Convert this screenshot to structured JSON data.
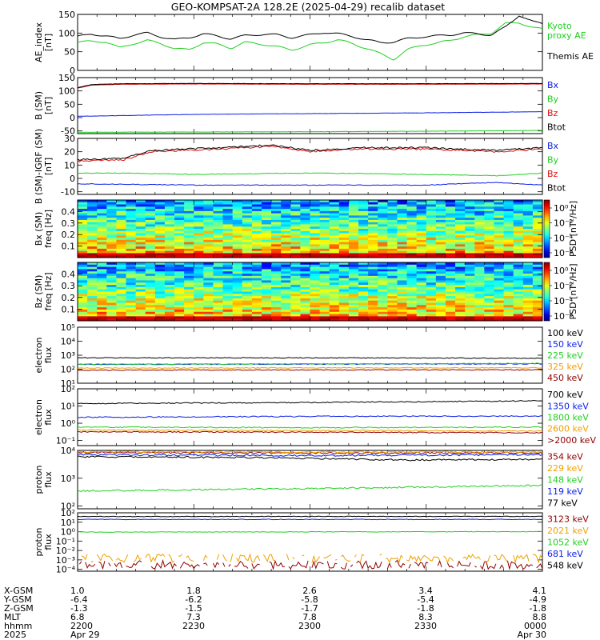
{
  "title": "GEO-KOMPSAT-2A 128.2E (2025-04-29) recalib dataset",
  "colors": {
    "black": "#000000",
    "blue": "#0a1ee6",
    "green": "#20d020",
    "orange": "#f0a000",
    "darkred": "#900000",
    "red": "#e01010"
  },
  "time": {
    "start": "22:00",
    "end": "00:00"
  },
  "chart_data": [
    {
      "type": "line",
      "ylabel": "AE_index\n[nT]",
      "ylim": [
        0,
        150
      ],
      "yticks": [
        0,
        50,
        100,
        150
      ],
      "series": [
        {
          "name": "Kyoto\nproxy AE",
          "color": "#20d020",
          "x": [
            0,
            0.03,
            0.06,
            0.09,
            0.12,
            0.15,
            0.18,
            0.21,
            0.24,
            0.27,
            0.3,
            0.33,
            0.36,
            0.4,
            0.43,
            0.46,
            0.5,
            0.53,
            0.56,
            0.59,
            0.62,
            0.65,
            0.68,
            0.71,
            0.74,
            0.77,
            0.8,
            0.83,
            0.86,
            0.89,
            0.92,
            0.95,
            0.98,
            1.0
          ],
          "y": [
            75,
            78,
            77,
            60,
            72,
            80,
            72,
            58,
            55,
            75,
            70,
            60,
            75,
            70,
            63,
            55,
            68,
            75,
            82,
            72,
            60,
            45,
            30,
            55,
            68,
            72,
            80,
            90,
            95,
            100,
            125,
            128,
            115,
            110
          ]
        },
        {
          "name": "Themis AE",
          "color": "#000000",
          "x": [
            0,
            0.03,
            0.06,
            0.09,
            0.12,
            0.15,
            0.18,
            0.21,
            0.24,
            0.27,
            0.3,
            0.33,
            0.36,
            0.4,
            0.43,
            0.46,
            0.5,
            0.53,
            0.56,
            0.59,
            0.62,
            0.65,
            0.68,
            0.71,
            0.74,
            0.77,
            0.8,
            0.83,
            0.86,
            0.89,
            0.92,
            0.95,
            0.98,
            1.0
          ],
          "y": [
            90,
            98,
            92,
            85,
            95,
            100,
            90,
            82,
            88,
            98,
            92,
            85,
            93,
            97,
            95,
            88,
            95,
            102,
            98,
            92,
            82,
            75,
            76,
            85,
            90,
            92,
            95,
            100,
            98,
            95,
            115,
            148,
            130,
            125
          ]
        }
      ]
    },
    {
      "type": "line",
      "ylabel": "B (SM)\n[nT]",
      "ylim": [
        -60,
        150
      ],
      "yticks": [
        -50,
        0,
        50,
        100,
        150
      ],
      "series": [
        {
          "name": "Bx",
          "color": "#0a1ee6",
          "x": [
            0,
            0.25,
            0.5,
            0.75,
            1.0
          ],
          "y": [
            5,
            12,
            15,
            18,
            22
          ]
        },
        {
          "name": "By",
          "color": "#20d020",
          "x": [
            0,
            0.25,
            0.5,
            0.75,
            1.0
          ],
          "y": [
            -55,
            -54,
            -53,
            -51,
            -48
          ]
        },
        {
          "name": "Bz",
          "color": "#e01010",
          "x": [
            0,
            0.03,
            0.1,
            0.25,
            0.5,
            0.75,
            1.0
          ],
          "y": [
            110,
            122,
            125,
            126,
            125,
            125,
            126
          ]
        },
        {
          "name": "Btot",
          "color": "#000000",
          "x": [
            0,
            0.03,
            0.1,
            0.25,
            0.5,
            0.75,
            1.0
          ],
          "y": [
            112,
            124,
            127,
            128,
            127,
            127,
            128
          ]
        }
      ]
    },
    {
      "type": "line",
      "ylabel": "B (SM)-IGRF (SM)\n[nT]",
      "ylim": [
        -12,
        30
      ],
      "yticks": [
        -10,
        0,
        10,
        20,
        30
      ],
      "series": [
        {
          "name": "Bx",
          "color": "#0a1ee6",
          "x": [
            0,
            0.25,
            0.5,
            0.75,
            0.9,
            1.0
          ],
          "y": [
            -4,
            -5,
            -5,
            -5,
            -3,
            -5
          ]
        },
        {
          "name": "By",
          "color": "#20d020",
          "x": [
            0,
            0.1,
            0.25,
            0.5,
            0.75,
            0.9,
            1.0
          ],
          "y": [
            4,
            4,
            3,
            4,
            3,
            2,
            4
          ]
        },
        {
          "name": "Bz",
          "color": "#e01010",
          "x": [
            0,
            0.1,
            0.16,
            0.3,
            0.42,
            0.5,
            0.6,
            0.75,
            0.9,
            1.0
          ],
          "y": [
            13,
            14,
            20,
            22,
            24,
            20,
            22,
            22,
            20,
            22
          ]
        },
        {
          "name": "Btot",
          "color": "#000000",
          "x": [
            0,
            0.1,
            0.16,
            0.3,
            0.42,
            0.5,
            0.6,
            0.75,
            0.9,
            1.0
          ],
          "y": [
            14,
            15,
            21,
            23,
            25,
            21,
            23,
            23,
            21,
            23
          ]
        }
      ]
    },
    {
      "type": "heatmap",
      "ylabel": "Bx (SM)\nfreq [Hz]",
      "ylim": [
        0,
        0.5
      ],
      "yticks": [
        0.1,
        0.2,
        0.3,
        0.4
      ],
      "colorbar": {
        "label": "PSD [nT²/Hz]",
        "ticks": [
          "10⁰",
          "10⁻²",
          "10⁻⁴",
          "10⁻⁶"
        ]
      },
      "seed": 7
    },
    {
      "type": "heatmap",
      "ylabel": "Bz (SM)\nfreq [Hz]",
      "ylim": [
        0,
        0.5
      ],
      "yticks": [
        0.1,
        0.2,
        0.3,
        0.4
      ],
      "colorbar": {
        "label": "PSD [nT²/Hz]",
        "ticks": [
          "10⁰",
          "10⁻²",
          "10⁻⁴",
          "10⁻⁶"
        ]
      },
      "seed": 13
    },
    {
      "type": "line",
      "scale": "log",
      "ylabel": "electron\nflux",
      "ylim_exp": [
        1,
        5
      ],
      "yticks": [
        1,
        2,
        3,
        4,
        5
      ],
      "series": [
        {
          "name": "100 keV",
          "color": "#000000",
          "x": [
            0,
            0.5,
            1.0
          ],
          "y": [
            650,
            650,
            600
          ]
        },
        {
          "name": "150 keV",
          "color": "#0a1ee6",
          "x": [
            0,
            0.5,
            1.0
          ],
          "y": [
            220,
            230,
            240
          ]
        },
        {
          "name": "225 keV",
          "color": "#20d020",
          "x": [
            0,
            0.5,
            1.0
          ],
          "y": [
            230,
            240,
            260
          ]
        },
        {
          "name": "325 keV",
          "color": "#f0a000",
          "x": [
            0,
            0.5,
            1.0
          ],
          "y": [
            120,
            125,
            128
          ]
        },
        {
          "name": "450 keV",
          "color": "#900000",
          "x": [
            0,
            0.5,
            1.0
          ],
          "y": [
            85,
            88,
            90
          ]
        }
      ]
    },
    {
      "type": "line",
      "scale": "log",
      "ylabel": "electron\nflux",
      "ylim_exp": [
        -1.3,
        2
      ],
      "yticks": [
        -1,
        0,
        1,
        2
      ],
      "series": [
        {
          "name": "700 keV",
          "color": "#000000",
          "x": [
            0,
            0.5,
            1.0
          ],
          "y": [
            14,
            16,
            20
          ]
        },
        {
          "name": "1350 keV",
          "color": "#0a1ee6",
          "x": [
            0,
            0.5,
            1.0
          ],
          "y": [
            2.2,
            2.5,
            2.6
          ]
        },
        {
          "name": "1800 keV",
          "color": "#20d020",
          "x": [
            0,
            0.5,
            1.0
          ],
          "y": [
            0.6,
            0.55,
            0.6
          ]
        },
        {
          "name": "2600 keV",
          "color": "#f0a000",
          "x": [
            0,
            0.5,
            1.0
          ],
          "y": [
            0.4,
            0.38,
            0.35
          ]
        },
        {
          "name": ">2000 keV",
          "color": "#900000",
          "x": [
            0,
            0.5,
            1.0
          ],
          "y": [
            0.32,
            0.3,
            0.28
          ]
        }
      ]
    },
    {
      "type": "line",
      "scale": "log",
      "ylabel": "proton\nflux",
      "ylim_exp": [
        1.9,
        4
      ],
      "yticks": [
        2,
        3,
        4
      ],
      "series": [
        {
          "name": "354 keV",
          "color": "#900000",
          "x": [
            0,
            0.5,
            1.0
          ],
          "y": [
            8500,
            8000,
            8200
          ]
        },
        {
          "name": "229 keV",
          "color": "#f0a000",
          "x": [
            0,
            0.5,
            1.0
          ],
          "y": [
            9000,
            8800,
            9000
          ]
        },
        {
          "name": "148 keV",
          "color": "#20d020",
          "x": [
            0,
            0.5,
            1.0
          ],
          "y": [
            350,
            420,
            550
          ]
        },
        {
          "name": "119 keV",
          "color": "#0a1ee6",
          "x": [
            0,
            0.5,
            1.0
          ],
          "y": [
            7000,
            6500,
            7000
          ]
        },
        {
          "name": "77 keV",
          "color": "#000000",
          "x": [
            0,
            0.4,
            0.7,
            1.0
          ],
          "y": [
            6000,
            5500,
            4500,
            4800
          ]
        }
      ]
    },
    {
      "type": "line",
      "scale": "log",
      "ylabel": "proton\nflux",
      "ylim_exp": [
        -4.2,
        2
      ],
      "yticks": [
        -4,
        -3,
        -2,
        -1,
        0,
        1,
        2
      ],
      "series": [
        {
          "name": "3123 keV",
          "color": "#900000",
          "x": [
            0,
            1.0
          ],
          "y": [
            0.0003,
            0.0003
          ]
        },
        {
          "name": "2021 keV",
          "color": "#f0a000",
          "x": [
            0,
            1.0
          ],
          "y": [
            0.0015,
            0.0015
          ]
        },
        {
          "name": "1052 keV",
          "color": "#20d020",
          "x": [
            0,
            1.0
          ],
          "y": [
            0.9,
            1.0
          ]
        },
        {
          "name": "681 keV",
          "color": "#0a1ee6",
          "x": [
            0,
            1.0
          ],
          "y": [
            20,
            20
          ]
        },
        {
          "name": "548 keV",
          "color": "#000000",
          "x": [
            0,
            1.0
          ],
          "y": [
            40,
            42
          ]
        }
      ]
    }
  ],
  "ephemeris": {
    "labels": [
      "X-GSM",
      "Y-GSM",
      "Z-GSM",
      "MLT",
      "hhmm",
      "2025"
    ],
    "columns": [
      [
        "1.0",
        "-6.4",
        "-1.3",
        "6.8",
        "2200",
        "Apr 29"
      ],
      [
        "1.8",
        "-6.2",
        "-1.5",
        "7.3",
        "2230",
        ""
      ],
      [
        "2.6",
        "-5.8",
        "-1.7",
        "7.8",
        "2300",
        ""
      ],
      [
        "3.4",
        "-5.4",
        "-1.8",
        "8.3",
        "2330",
        ""
      ],
      [
        "4.1",
        "-4.9",
        "-1.8",
        "8.8",
        "0000",
        "Apr 30"
      ]
    ]
  }
}
